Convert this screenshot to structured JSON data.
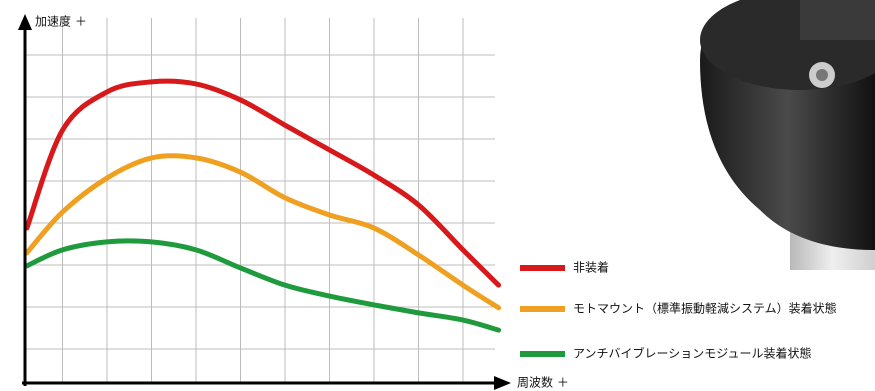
{
  "chart_data": {
    "type": "line",
    "y_label": "加速度 ＋",
    "x_label": "周波数 ＋",
    "x": [
      0.2,
      1,
      2,
      3,
      4,
      5,
      6,
      7,
      8,
      9,
      10,
      10.8
    ],
    "series": [
      {
        "name": "非装着",
        "color": "#d7191c",
        "values": [
          3.88,
          6.21,
          7.12,
          7.36,
          7.31,
          6.93,
          6.33,
          5.74,
          5.14,
          4.43,
          3.36,
          2.52
        ]
      },
      {
        "name": "モトマウント（標準振動軽減システム）装着状態",
        "color": "#f0a020",
        "values": [
          3.29,
          4.26,
          5.07,
          5.55,
          5.55,
          5.21,
          4.6,
          4.19,
          3.88,
          3.24,
          2.52,
          1.98
        ]
      },
      {
        "name": "アンチバイブレーションモジュール装着状態",
        "color": "#1f9a3c",
        "values": [
          2.98,
          3.36,
          3.55,
          3.55,
          3.36,
          2.93,
          2.52,
          2.26,
          2.05,
          1.86,
          1.69,
          1.45
        ]
      }
    ],
    "xlim": [
      0,
      11
    ],
    "ylim": [
      0,
      9
    ],
    "xticks": [
      1,
      2,
      3,
      4,
      5,
      6,
      7,
      8,
      9,
      10
    ],
    "yticks": [
      1,
      2,
      3,
      4,
      5,
      6,
      7,
      8
    ],
    "grid": true,
    "legend": "right"
  }
}
